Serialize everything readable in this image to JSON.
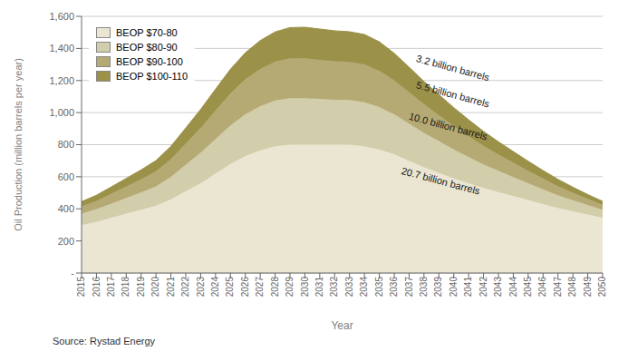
{
  "chart_data": {
    "type": "area",
    "stacked": true,
    "xlabel": "Year",
    "ylabel": "Oil Production (million barrels per year)",
    "source": "Source: Rystad Energy",
    "x": [
      2015,
      2016,
      2017,
      2018,
      2019,
      2020,
      2021,
      2022,
      2023,
      2024,
      2025,
      2026,
      2027,
      2028,
      2029,
      2030,
      2031,
      2032,
      2033,
      2034,
      2035,
      2036,
      2037,
      2038,
      2039,
      2040,
      2041,
      2042,
      2043,
      2044,
      2045,
      2046,
      2047,
      2048,
      2049,
      2050
    ],
    "series": [
      {
        "name": "BEOP $70-80",
        "color": "#eae6d2",
        "values": [
          300,
          320,
          345,
          370,
          395,
          420,
          460,
          510,
          560,
          620,
          680,
          730,
          765,
          790,
          800,
          800,
          800,
          800,
          800,
          790,
          770,
          740,
          700,
          660,
          625,
          590,
          560,
          530,
          505,
          480,
          455,
          430,
          405,
          385,
          365,
          345
        ]
      },
      {
        "name": "BEOP $80-90",
        "color": "#d2cdaa",
        "values": [
          70,
          78,
          88,
          98,
          108,
          120,
          140,
          165,
          190,
          215,
          240,
          260,
          275,
          285,
          290,
          290,
          285,
          280,
          278,
          275,
          265,
          250,
          232,
          214,
          197,
          180,
          163,
          147,
          132,
          118,
          105,
          92,
          80,
          69,
          59,
          50
        ]
      },
      {
        "name": "BEOP $90-100",
        "color": "#b5aa74",
        "values": [
          45,
          52,
          62,
          72,
          82,
          94,
          110,
          132,
          155,
          178,
          200,
          218,
          232,
          242,
          248,
          248,
          244,
          240,
          238,
          235,
          226,
          212,
          196,
          179,
          162,
          146,
          130,
          116,
          102,
          90,
          78,
          67,
          57,
          47,
          38,
          31
        ]
      },
      {
        "name": "BEOP $100-110",
        "color": "#9c9148",
        "values": [
          30,
          35,
          42,
          50,
          58,
          67,
          80,
          97,
          115,
          133,
          150,
          165,
          177,
          186,
          192,
          194,
          192,
          190,
          188,
          187,
          180,
          168,
          155,
          141,
          128,
          115,
          102,
          90,
          79,
          69,
          59,
          50,
          42,
          34,
          27,
          21
        ]
      }
    ],
    "xlim": [
      2015,
      2050
    ],
    "xticks": [
      2015,
      2016,
      2017,
      2018,
      2019,
      2020,
      2021,
      2022,
      2023,
      2024,
      2025,
      2026,
      2027,
      2028,
      2029,
      2030,
      2031,
      2032,
      2033,
      2034,
      2035,
      2036,
      2037,
      2038,
      2039,
      2040,
      2041,
      2042,
      2043,
      2044,
      2045,
      2046,
      2047,
      2048,
      2049,
      2050
    ],
    "ylim": [
      0,
      1600
    ],
    "yticks": [
      {
        "value": 0,
        "label": "-"
      },
      200,
      400,
      600,
      800,
      {
        "value": 1000,
        "label": "1,000"
      },
      {
        "value": 1200,
        "label": "1,200"
      },
      {
        "value": 1400,
        "label": "1,400"
      },
      {
        "value": 1600,
        "label": "1,600"
      }
    ],
    "annotations": [
      {
        "text": "3.2 billion barrels",
        "x": 2037.5,
        "y": 1340
      },
      {
        "text": "5.5 billion barrels",
        "x": 2037.5,
        "y": 1175
      },
      {
        "text": "10.0 billion barrels",
        "x": 2037.0,
        "y": 980
      },
      {
        "text": "20.7 billion barrels",
        "x": 2036.5,
        "y": 640
      }
    ],
    "grid": true,
    "legend": "upper left"
  }
}
